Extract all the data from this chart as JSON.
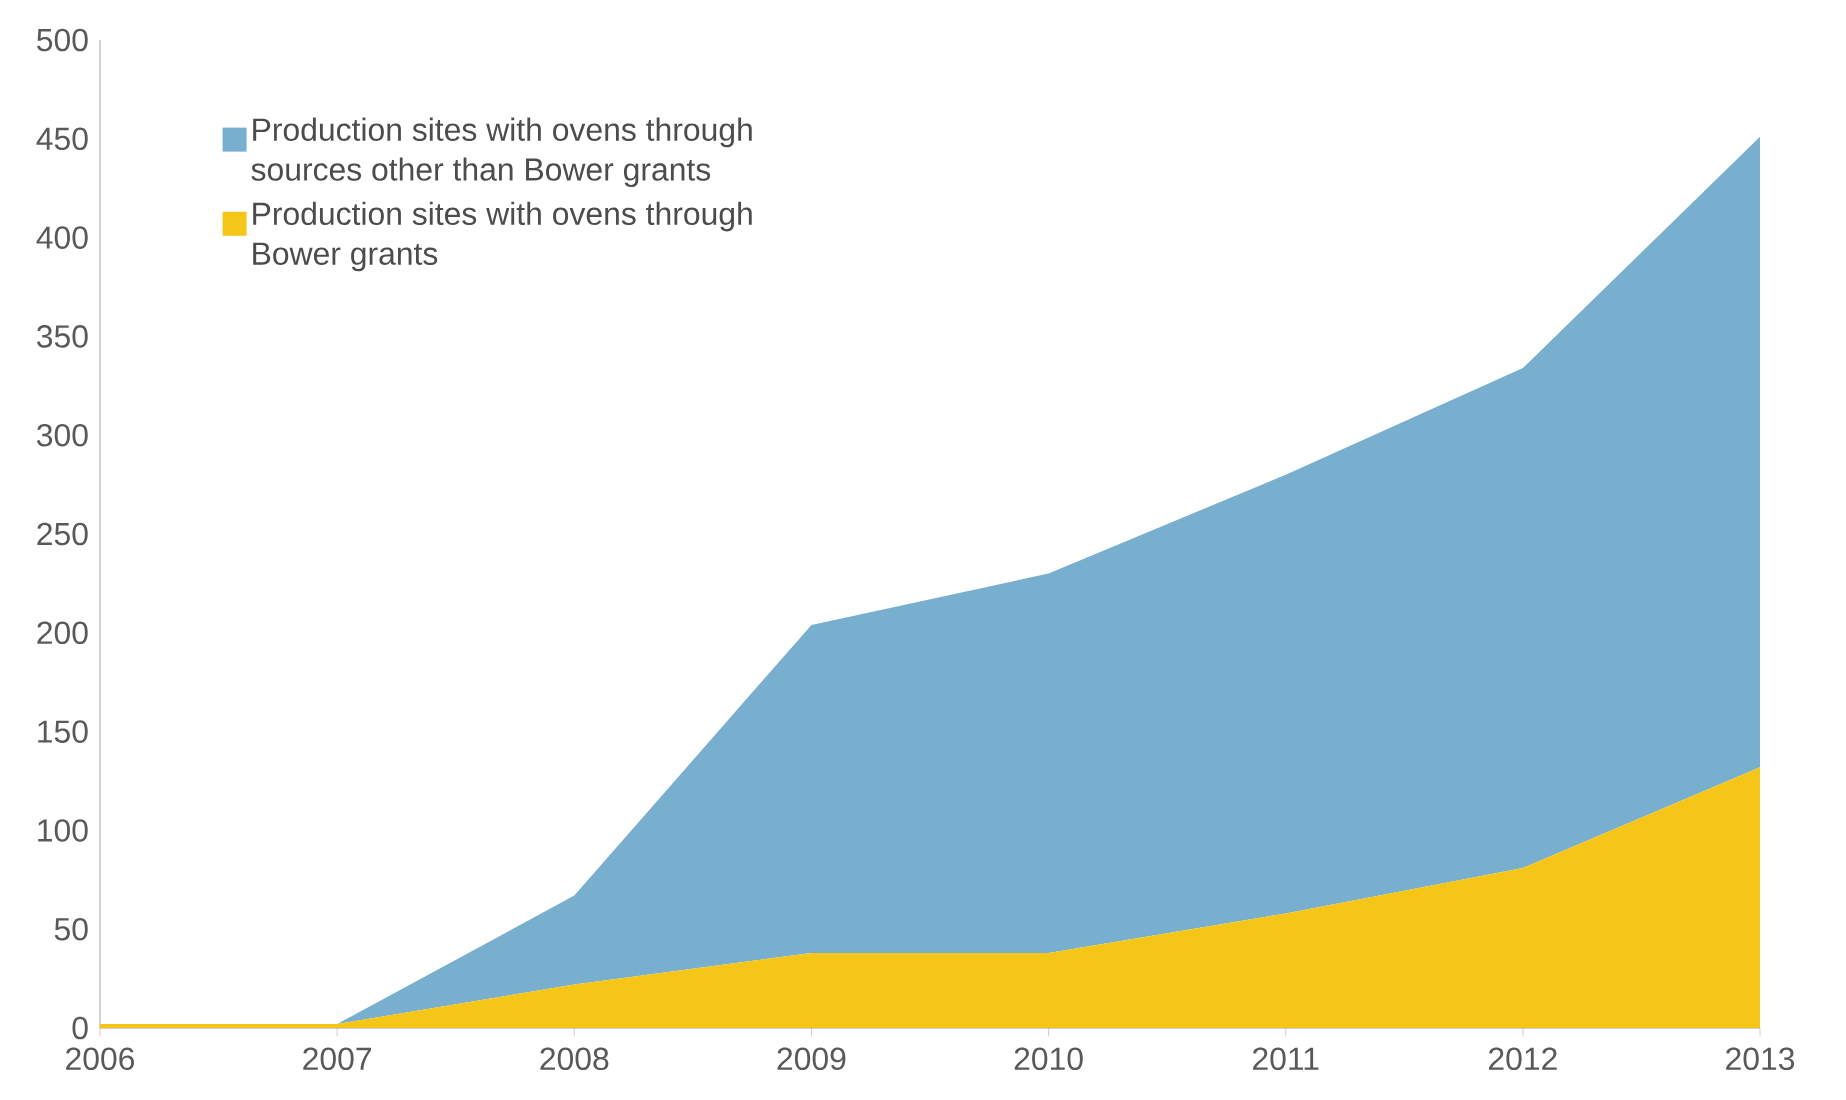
{
  "chart_data": {
    "type": "area",
    "stacked": true,
    "x": [
      2006,
      2007,
      2008,
      2009,
      2010,
      2011,
      2012,
      2013
    ],
    "series": [
      {
        "name": "Production sites with ovens through Bower grants",
        "color": "#f5c518",
        "values": [
          2,
          2,
          22,
          38,
          38,
          58,
          81,
          132
        ]
      },
      {
        "name": "Production sites with ovens through sources other than Bower grants",
        "color": "#78afcf",
        "values": [
          0,
          0,
          45,
          166,
          192,
          222,
          253,
          319
        ]
      }
    ],
    "xlim": [
      2006,
      2013
    ],
    "xticks": [
      2006,
      2007,
      2008,
      2009,
      2010,
      2011,
      2012,
      2013
    ],
    "ylim": [
      0,
      500
    ],
    "yticks": [
      0,
      50,
      100,
      150,
      200,
      250,
      300,
      350,
      400,
      450,
      500
    ],
    "legend": "top left",
    "grid": false
  }
}
